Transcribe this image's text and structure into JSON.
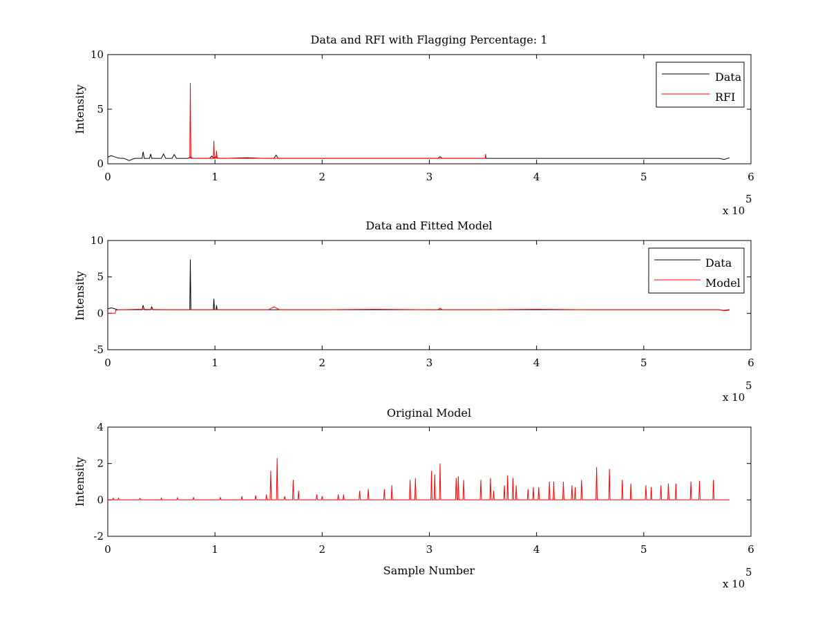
{
  "chart_data": [
    {
      "type": "line",
      "title": "Data and RFI with Flagging Percentage: 1",
      "xlabel": "",
      "ylabel": "Intensity",
      "xlim": [
        0,
        600000
      ],
      "ylim": [
        0,
        10
      ],
      "xticks": [
        0,
        1,
        2,
        3,
        4,
        5,
        6
      ],
      "yticks": [
        0,
        5,
        10
      ],
      "x_exponent_label": "x 10",
      "x_exponent_power": "5",
      "legend_position": "top-right",
      "series": [
        {
          "name": "Data",
          "color": "#000000",
          "x": [
            0,
            3000,
            6000,
            9000,
            12000,
            15000,
            20000,
            25000,
            32000,
            33000,
            34000,
            39000,
            40000,
            41000,
            50000,
            52000,
            54000,
            60000,
            62000,
            64000,
            75000,
            77000,
            79000,
            95000,
            97000,
            99000,
            101000,
            103000,
            110000,
            130000,
            145000,
            155000,
            157000,
            159000,
            200000,
            250000,
            300000,
            308000,
            310000,
            312000,
            350000,
            400000,
            450000,
            500000,
            550000,
            570000,
            575000,
            580000
          ],
          "y": [
            0.6,
            0.75,
            0.65,
            0.55,
            0.5,
            0.5,
            0.3,
            0.5,
            0.5,
            1.1,
            0.5,
            0.5,
            0.9,
            0.5,
            0.5,
            0.9,
            0.5,
            0.5,
            0.85,
            0.5,
            0.5,
            0.6,
            0.5,
            0.5,
            0.7,
            0.5,
            0.65,
            0.5,
            0.5,
            0.55,
            0.5,
            0.5,
            0.8,
            0.5,
            0.5,
            0.5,
            0.5,
            0.5,
            0.65,
            0.5,
            0.5,
            0.5,
            0.5,
            0.5,
            0.5,
            0.5,
            0.4,
            0.55
          ]
        },
        {
          "name": "RFI",
          "color": "#ff0000",
          "x": [
            76500,
            77000,
            77500,
            98500,
            99000,
            99500,
            101000,
            101500,
            102000,
            352000,
            352500,
            353000
          ],
          "y": [
            0.5,
            7.4,
            0.5,
            0.5,
            2.1,
            0.5,
            0.5,
            1.2,
            0.5,
            0.5,
            0.9,
            0.5
          ]
        }
      ]
    },
    {
      "type": "line",
      "title": "Data and Fitted Model",
      "xlabel": "",
      "ylabel": "Intensity",
      "xlim": [
        0,
        600000
      ],
      "ylim": [
        -5,
        10
      ],
      "xticks": [
        0,
        1,
        2,
        3,
        4,
        5,
        6
      ],
      "yticks": [
        -5,
        0,
        5,
        10
      ],
      "x_exponent_label": "x 10",
      "x_exponent_power": "5",
      "legend_position": "top-right",
      "series": [
        {
          "name": "Data",
          "color": "#000000",
          "x": [
            0,
            3000,
            6000,
            9000,
            12000,
            20000,
            32000,
            33000,
            34000,
            40000,
            41000,
            42000,
            76500,
            77000,
            77500,
            98500,
            99000,
            99500,
            101000,
            101500,
            102000,
            200000,
            300000,
            400000,
            500000,
            570000,
            575000,
            580000
          ],
          "y": [
            0.6,
            0.75,
            0.65,
            0.5,
            0.5,
            0.5,
            0.5,
            1.1,
            0.5,
            0.5,
            0.9,
            0.5,
            0.5,
            7.4,
            0.5,
            0.5,
            2.0,
            0.5,
            0.5,
            1.1,
            0.5,
            0.5,
            0.5,
            0.5,
            0.5,
            0.5,
            0.4,
            0.5
          ]
        },
        {
          "name": "Model",
          "color": "#ff0000",
          "x": [
            0,
            7000,
            7500,
            8000,
            9000,
            10000,
            30000,
            60000,
            90000,
            150000,
            155000,
            160000,
            200000,
            250000,
            300000,
            308000,
            310000,
            312000,
            350000,
            400000,
            450000,
            500000,
            550000,
            570000,
            575000,
            580000
          ],
          "y": [
            0,
            0,
            0.5,
            0.4,
            0.5,
            0.5,
            0.55,
            0.5,
            0.5,
            0.5,
            0.9,
            0.5,
            0.5,
            0.55,
            0.5,
            0.5,
            0.7,
            0.5,
            0.5,
            0.55,
            0.5,
            0.5,
            0.5,
            0.5,
            0.35,
            0.45
          ]
        }
      ]
    },
    {
      "type": "line",
      "title": "Original Model",
      "xlabel": "Sample Number",
      "ylabel": "Intensity",
      "xlim": [
        0,
        600000
      ],
      "ylim": [
        -2,
        4
      ],
      "xticks": [
        0,
        1,
        2,
        3,
        4,
        5,
        6
      ],
      "yticks": [
        -2,
        0,
        2,
        4
      ],
      "x_exponent_label": "x 10",
      "x_exponent_power": "5",
      "series": [
        {
          "color": "#ff0000",
          "baseline": 0,
          "x_end": 580000,
          "peaks_x": [
            5000,
            10000,
            30000,
            50000,
            65000,
            80000,
            105000,
            125000,
            138000,
            148000,
            152000,
            158000,
            165000,
            173000,
            178000,
            195000,
            200000,
            215000,
            220000,
            235000,
            243000,
            258000,
            265000,
            282000,
            287000,
            302000,
            305000,
            310000,
            325000,
            327000,
            332000,
            348000,
            357000,
            360000,
            370000,
            373000,
            378000,
            381000,
            392000,
            397000,
            402000,
            412000,
            416000,
            425000,
            433000,
            436000,
            442000,
            456000,
            468000,
            480000,
            488000,
            502000,
            507000,
            516000,
            523000,
            530000,
            544000,
            552000,
            565000
          ],
          "peaks_y": [
            0.1,
            0.1,
            0.08,
            0.1,
            0.12,
            0.15,
            0.15,
            0.2,
            0.25,
            0.3,
            1.6,
            2.3,
            0.2,
            1.1,
            0.5,
            0.3,
            0.2,
            0.3,
            0.3,
            0.5,
            0.6,
            0.6,
            0.8,
            1.1,
            1.2,
            1.6,
            1.4,
            2.0,
            1.2,
            1.3,
            1.1,
            1.1,
            1.2,
            0.5,
            0.8,
            1.35,
            1.2,
            0.8,
            0.6,
            0.7,
            0.7,
            1.0,
            1.0,
            1.0,
            0.8,
            0.7,
            1.1,
            1.8,
            1.7,
            1.1,
            0.9,
            0.8,
            0.7,
            0.8,
            0.9,
            0.9,
            1.0,
            1.05,
            1.1
          ]
        }
      ]
    }
  ]
}
